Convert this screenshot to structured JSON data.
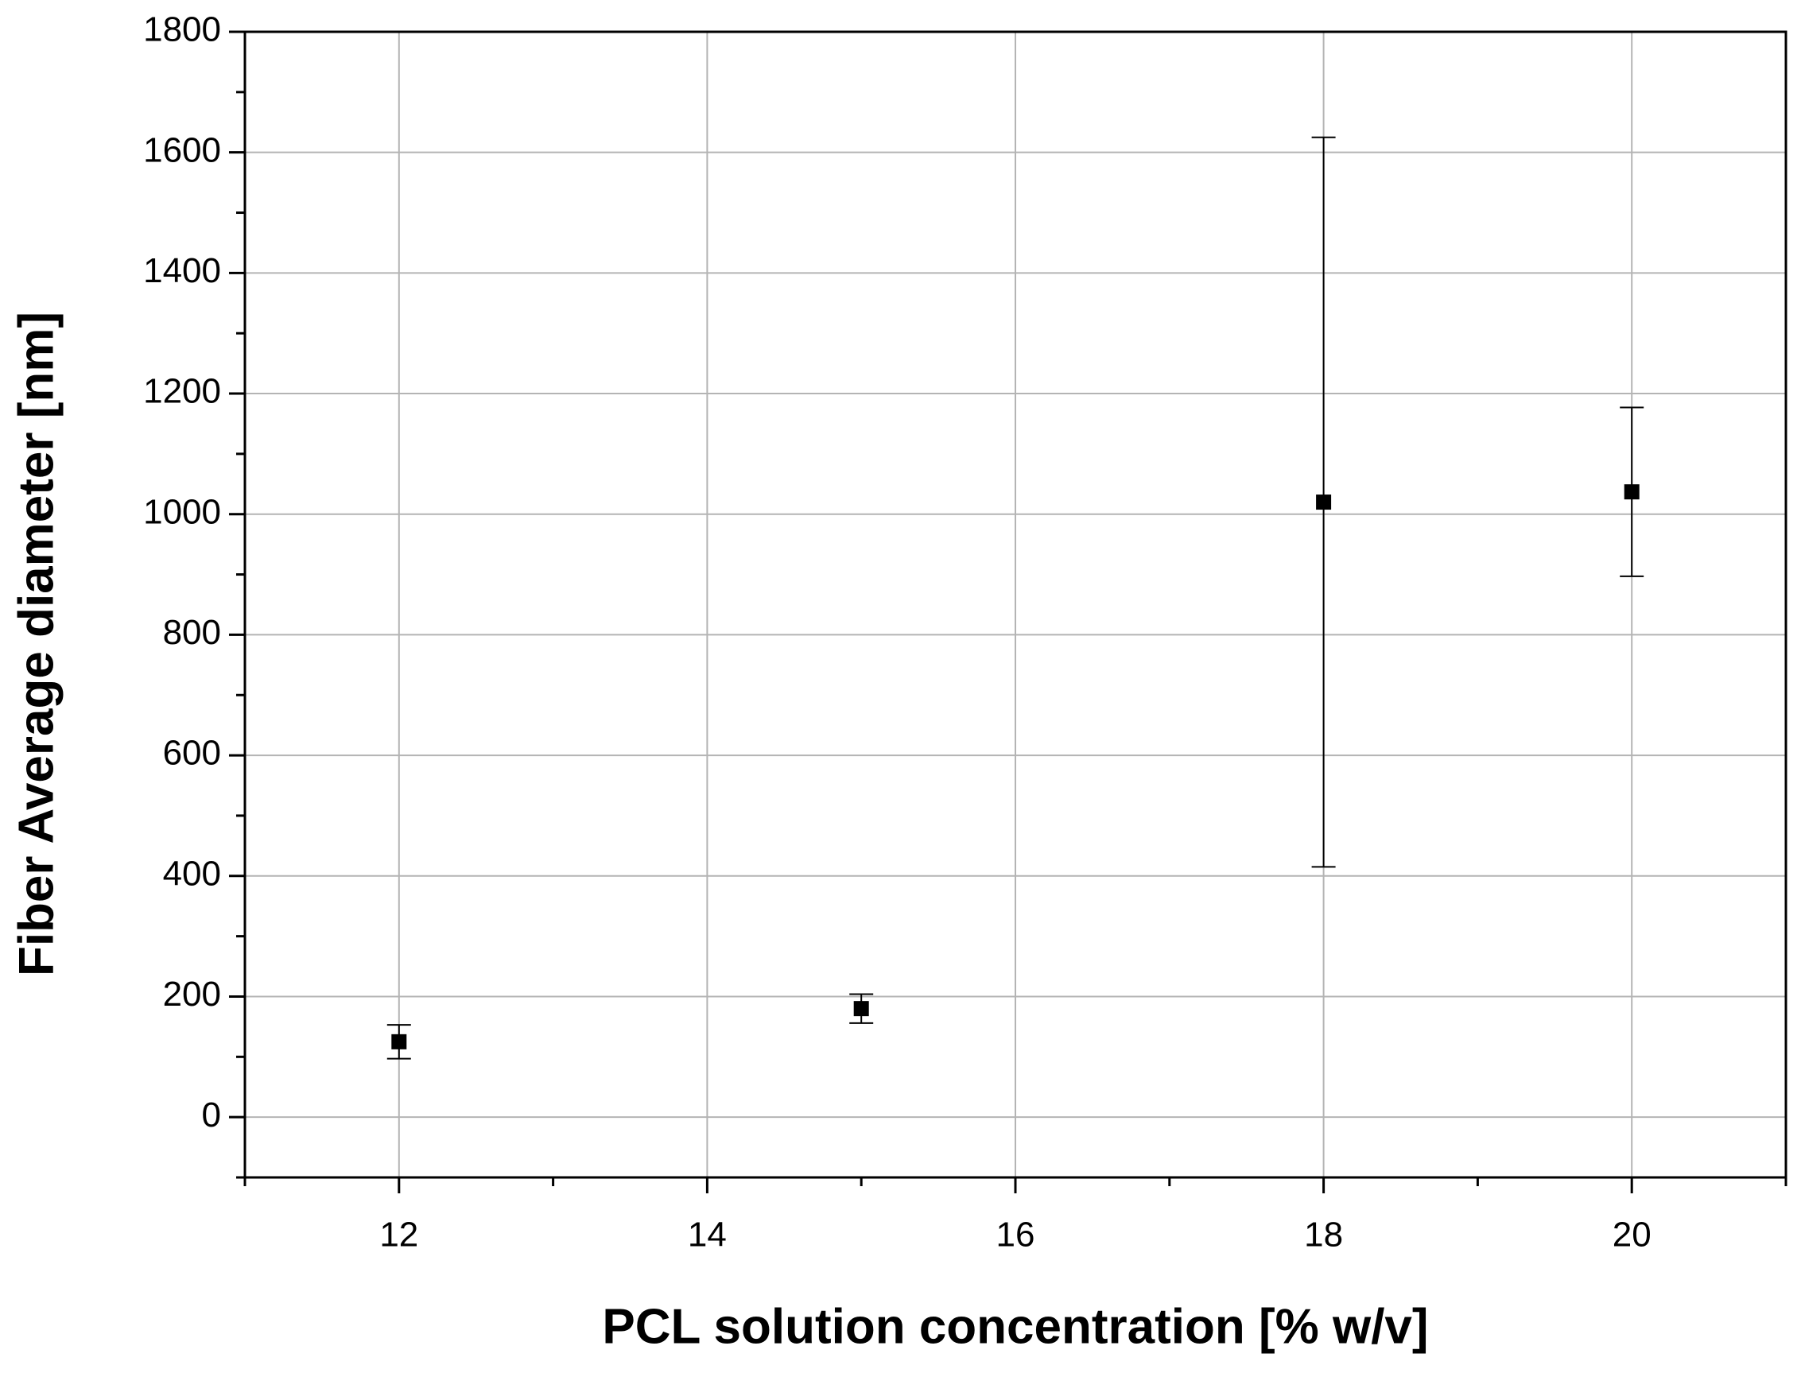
{
  "chart_data": {
    "type": "scatter",
    "x_label": "PCL solution concentration [% w/v]",
    "y_label": "Fiber Average diameter [nm]",
    "x": [
      12,
      15,
      18,
      20
    ],
    "series": [
      {
        "color": "#000000",
        "values": [
          125,
          180,
          1020,
          1037
        ],
        "errors": [
          28,
          24,
          605,
          140
        ]
      }
    ],
    "xlim": [
      11,
      21
    ],
    "ylim": [
      -100,
      1800
    ],
    "xticks": [
      12,
      14,
      16,
      18,
      20
    ],
    "yticks": [
      0,
      200,
      400,
      600,
      800,
      1000,
      1200,
      1400,
      1600,
      1800
    ],
    "x_minor_ticks": [
      11,
      13,
      15,
      17,
      19,
      21
    ],
    "y_minor_ticks": [
      -100,
      100,
      300,
      500,
      700,
      900,
      1100,
      1300,
      1500,
      1700
    ],
    "grid": true
  }
}
